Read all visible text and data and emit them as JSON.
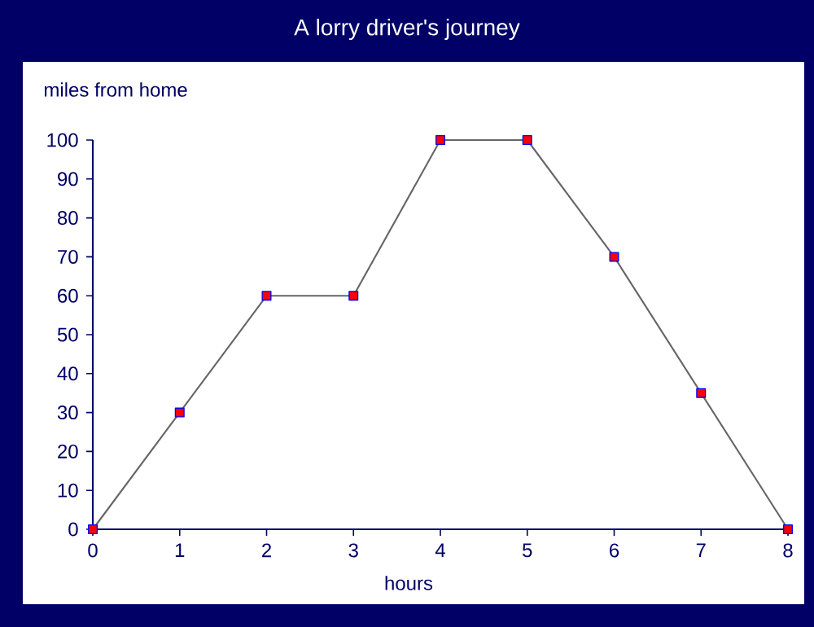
{
  "chart_data": {
    "type": "line",
    "title": "A lorry driver's journey",
    "xlabel": "hours",
    "ylabel": "miles from home",
    "x": [
      0,
      1,
      2,
      3,
      4,
      5,
      6,
      7,
      8
    ],
    "series": [
      {
        "color": "#666666",
        "values": [
          0,
          30,
          60,
          60,
          100,
          100,
          70,
          35,
          0
        ]
      }
    ],
    "xlim": [
      0,
      8
    ],
    "xticks": [
      0,
      1,
      2,
      3,
      4,
      5,
      6,
      7,
      8
    ],
    "ylim": [
      0,
      100
    ],
    "yticks": [
      0,
      10,
      20,
      30,
      40,
      50,
      60,
      70,
      80,
      90,
      100
    ],
    "marker": "square",
    "grid": false
  }
}
